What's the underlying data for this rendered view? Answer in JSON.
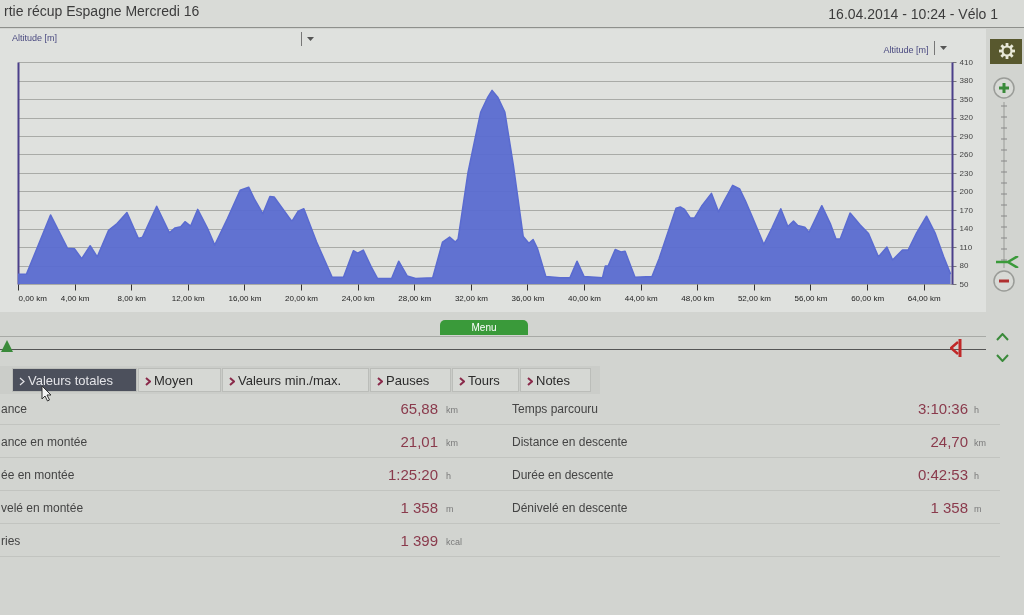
{
  "chart_data": {
    "type": "area",
    "title": "rtie récup Espagne Mercredi 16",
    "subtitle": "16.04.2014 - 10:24 - Vélo 1",
    "ylabel": "Altitude [m]",
    "x": [
      0,
      0.6,
      2.3,
      3.5,
      4,
      4.5,
      5.1,
      5.6,
      6.4,
      7,
      7.7,
      8.5,
      8.8,
      9.8,
      10.7,
      11.1,
      11.5,
      11.8,
      12.2,
      12.7,
      13.4,
      13.9,
      14.8,
      15.7,
      16.3,
      16.7,
      17.3,
      17.8,
      18.1,
      19.3,
      19.4,
      19.8,
      20.2,
      21.1,
      22.2,
      23,
      23.7,
      24,
      24.4,
      25,
      25.4,
      26.4,
      26.9,
      27.5,
      28.1,
      29.3,
      30,
      30.5,
      30.9,
      31.1,
      31.8,
      32.3,
      32.7,
      33.2,
      33.5,
      33.9,
      34.4,
      35,
      35.7,
      36.1,
      36.4,
      36.7,
      37.3,
      38.3,
      39,
      39.5,
      40,
      41.3,
      41.5,
      41.7,
      42.2,
      42.6,
      42.9,
      43.6,
      44.8,
      45.3,
      46.5,
      46.8,
      47.1,
      47.5,
      47.8,
      48.3,
      49,
      49.5,
      49.9,
      50.5,
      51,
      51.4,
      51.9,
      52.7,
      53.3,
      53.9,
      54.4,
      54.8,
      55.1,
      55.6,
      55.9,
      56.8,
      57.4,
      57.8,
      58.1,
      58.8,
      59.5,
      60.1,
      60.8,
      61.4,
      61.8,
      62.5,
      62.9,
      63.5,
      64.2,
      64.8,
      65.4,
      65.9
    ],
    "values": [
      66,
      66,
      162,
      108,
      107,
      91,
      112,
      94,
      137,
      148,
      166,
      124,
      126,
      176,
      133,
      141,
      143,
      151,
      144,
      171,
      140,
      113,
      156,
      202,
      207,
      188,
      164,
      192,
      191,
      153,
      153,
      168,
      172,
      118,
      61,
      61,
      104,
      100,
      105,
      76,
      59,
      59,
      87,
      63,
      59,
      60,
      118,
      126,
      118,
      123,
      231,
      286,
      329,
      353,
      364,
      353,
      329,
      243,
      127,
      116,
      122,
      108,
      62,
      60,
      60,
      87,
      62,
      60,
      79,
      79,
      106,
      102,
      103,
      61,
      62,
      91,
      173,
      175,
      171,
      157,
      157,
      176,
      197,
      167,
      185,
      210,
      204,
      185,
      158,
      114,
      142,
      172,
      143,
      152,
      145,
      142,
      134,
      177,
      148,
      123,
      123,
      165,
      146,
      132,
      94,
      110,
      89,
      105,
      105,
      133,
      160,
      133,
      95,
      66
    ],
    "color": "#5a6bd0",
    "xlim": [
      0,
      66
    ],
    "xticks": [
      {
        "value": 0,
        "label": "0,00 km"
      },
      {
        "value": 4,
        "label": "4,00 km"
      },
      {
        "value": 8,
        "label": "8,00 km"
      },
      {
        "value": 12,
        "label": "12,00 km"
      },
      {
        "value": 16,
        "label": "16,00 km"
      },
      {
        "value": 20,
        "label": "20,00 km"
      },
      {
        "value": 24,
        "label": "24,00 km"
      },
      {
        "value": 28,
        "label": "28,00 km"
      },
      {
        "value": 32,
        "label": "32,00 km"
      },
      {
        "value": 36,
        "label": "36,00 km"
      },
      {
        "value": 40,
        "label": "40,00 km"
      },
      {
        "value": 44,
        "label": "44,00 km"
      },
      {
        "value": 48,
        "label": "48,00 km"
      },
      {
        "value": 52,
        "label": "52,00 km"
      },
      {
        "value": 56,
        "label": "56,00 km"
      },
      {
        "value": 60,
        "label": "60,00 km"
      },
      {
        "value": 64,
        "label": "64,00 km"
      }
    ],
    "ylim": [
      50,
      410
    ],
    "yticks": [
      50,
      80,
      110,
      140,
      170,
      200,
      230,
      260,
      290,
      320,
      350,
      380,
      410
    ],
    "grid": "y",
    "annotations": [
      "Altitude [m]",
      "Menu",
      "Valeurs totales",
      "Moyen",
      "Valeurs min./max.",
      "Pauses",
      "Tours",
      "Notes",
      "ance",
      "65,88",
      "km",
      "Temps parcouru",
      "3:10:36",
      "h",
      "ance en montée",
      "21,01",
      "km",
      "Distance en descente",
      "24,70",
      "km",
      "ée en montée",
      "1:25:20",
      "h",
      "Durée en descente",
      "0:42:53",
      "h",
      "velé en montée",
      "1 358",
      "m",
      "Dénivelé en descente",
      "1 358",
      "m",
      "ries",
      "1 399",
      "kcal"
    ]
  }
}
